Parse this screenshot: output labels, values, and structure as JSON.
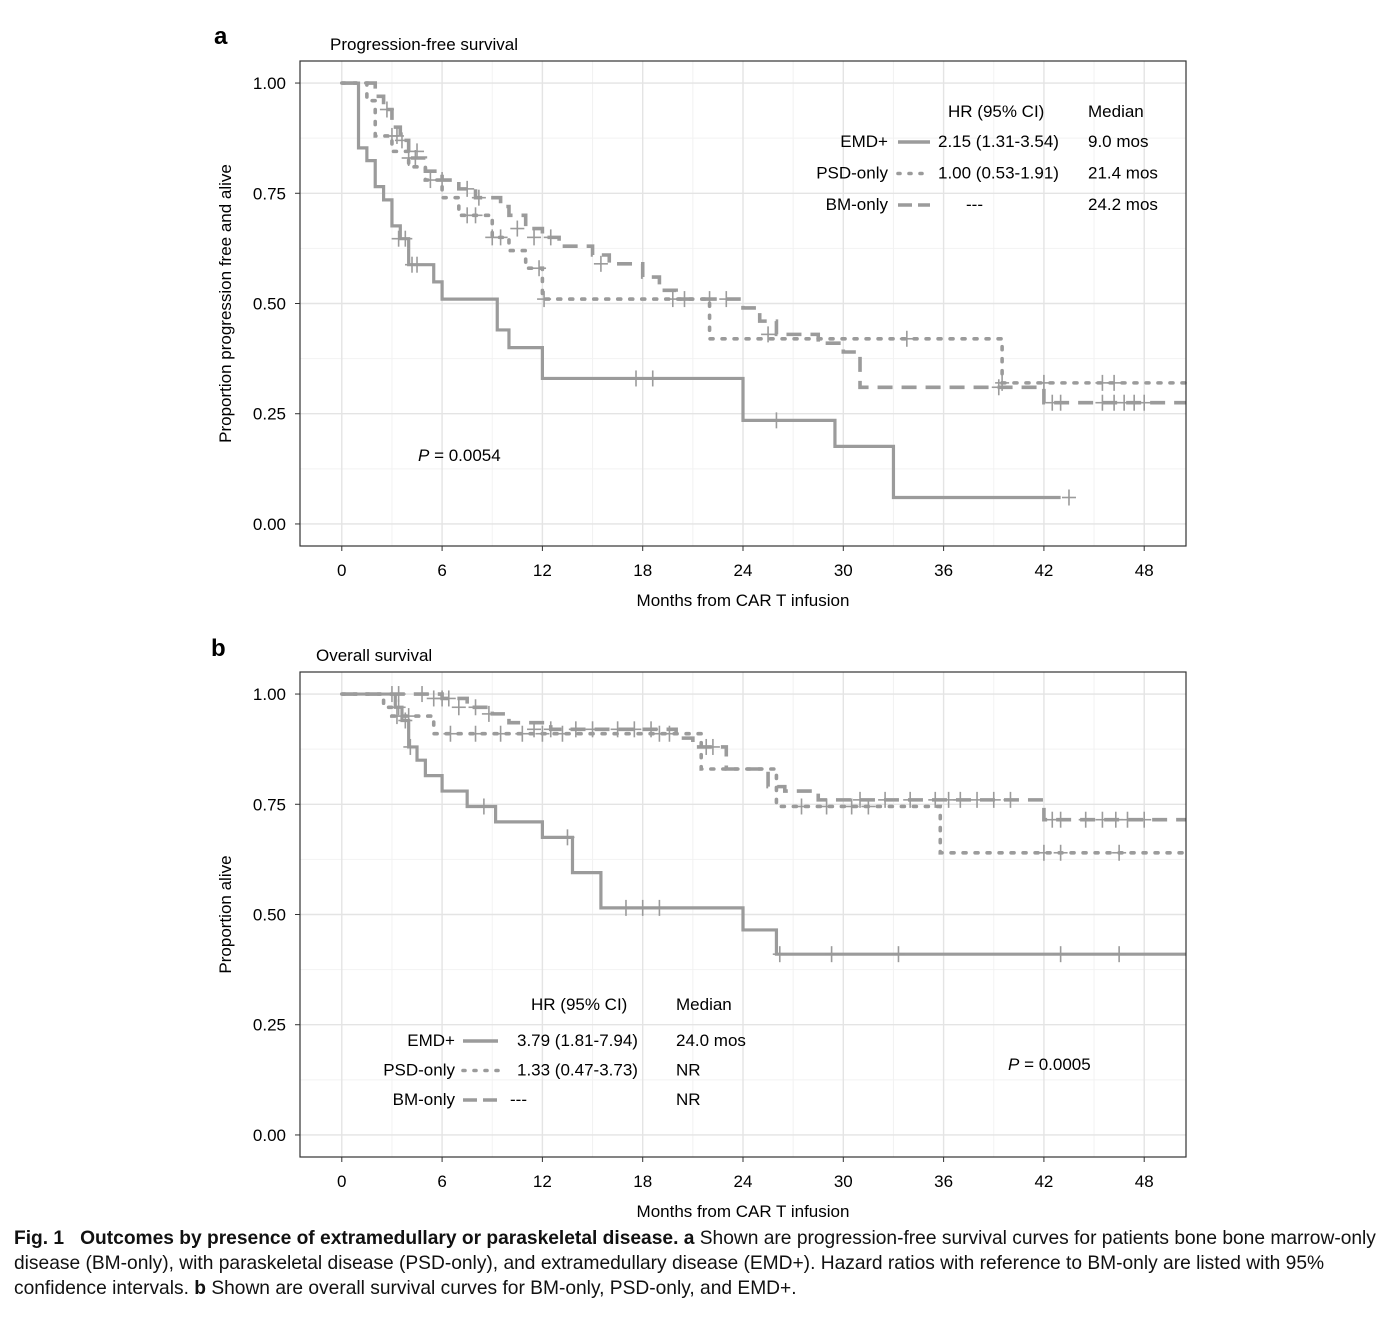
{
  "chart_data": [
    {
      "panel_label": "a",
      "type": "line",
      "subtype": "kaplan-meier",
      "title": "Progression-free survival",
      "xlabel": "Months from CAR T infusion",
      "ylabel": "Proportion progression free and alive",
      "xlim": [
        -2.5,
        50.5
      ],
      "ylim": [
        -0.05,
        1.05
      ],
      "xticks": [
        "0",
        "6",
        "12",
        "18",
        "24",
        "30",
        "36",
        "42",
        "48"
      ],
      "yticks": [
        "0.00",
        "0.25",
        "0.50",
        "0.75",
        "1.00"
      ],
      "grid": true,
      "p_label": "P",
      "p_value": " = 0.0054",
      "legend": {
        "placement": "top-right",
        "hr_header": "HR (95% CI)",
        "median_header": "Median",
        "rows": [
          {
            "name": "EMD+",
            "hr": "2.15 (1.31-3.54)",
            "median": "9.0 mos",
            "style": "solid"
          },
          {
            "name": "PSD-only",
            "hr": "1.00 (0.53-1.91)",
            "median": "21.4 mos",
            "style": "dotted"
          },
          {
            "name": "BM-only",
            "hr": "---",
            "median": "24.2 mos",
            "style": "dashed"
          }
        ]
      },
      "series": [
        {
          "name": "EMD+",
          "style": "solid",
          "x": [
            0,
            0.8,
            1.0,
            1.5,
            2.0,
            2.5,
            3.0,
            3.5,
            4.0,
            5.5,
            6.0,
            9.0,
            9.3,
            10.0,
            12.0,
            24.0,
            29.5,
            33.0,
            43.0
          ],
          "y": [
            1.0,
            1.0,
            0.853,
            0.824,
            0.765,
            0.735,
            0.676,
            0.647,
            0.588,
            0.549,
            0.51,
            0.51,
            0.44,
            0.4,
            0.33,
            0.235,
            0.176,
            0.06,
            0.06
          ],
          "censor_x": [
            3.4,
            3.8,
            4.2,
            4.5,
            17.6,
            18.6,
            26.0,
            43.5
          ],
          "censor_y": [
            0.647,
            0.647,
            0.588,
            0.588,
            0.33,
            0.33,
            0.235,
            0.06
          ]
        },
        {
          "name": "PSD-only",
          "style": "dotted",
          "x": [
            0,
            1.0,
            1.5,
            2.0,
            3.0,
            4.0,
            5.0,
            6.0,
            7.0,
            9.0,
            10.0,
            11.0,
            12.0,
            21.0,
            22.0,
            38.8,
            39.5,
            50.5
          ],
          "y": [
            1.0,
            1.0,
            0.96,
            0.88,
            0.845,
            0.81,
            0.78,
            0.74,
            0.7,
            0.65,
            0.62,
            0.58,
            0.51,
            0.51,
            0.42,
            0.42,
            0.32,
            0.32
          ],
          "censor_x": [
            3.0,
            3.3,
            4.5,
            7.5,
            8.0,
            9.0,
            9.5,
            11.8,
            12.1,
            33.8,
            39.5,
            42.0,
            45.5,
            46.2
          ],
          "censor_y": [
            0.88,
            0.88,
            0.845,
            0.7,
            0.7,
            0.65,
            0.65,
            0.58,
            0.51,
            0.42,
            0.32,
            0.32,
            0.32,
            0.32
          ]
        },
        {
          "name": "BM-only",
          "style": "dashed",
          "x": [
            0,
            1.5,
            2.0,
            2.5,
            3.0,
            3.5,
            4.0,
            5.0,
            6.0,
            7.0,
            8.0,
            9.5,
            10.0,
            11.0,
            12.0,
            13.0,
            15.0,
            16.0,
            18.0,
            19.0,
            20.0,
            21.0,
            24.0,
            25.0,
            26.0,
            28.5,
            30.0,
            31.0,
            39.0,
            42.0,
            50.5
          ],
          "y": [
            1.0,
            1.0,
            0.97,
            0.94,
            0.9,
            0.87,
            0.83,
            0.8,
            0.78,
            0.76,
            0.74,
            0.72,
            0.7,
            0.67,
            0.65,
            0.63,
            0.61,
            0.59,
            0.56,
            0.53,
            0.51,
            0.51,
            0.49,
            0.46,
            0.43,
            0.41,
            0.39,
            0.31,
            0.31,
            0.275,
            0.275
          ],
          "censor_x": [
            2.7,
            3.6,
            4.0,
            4.4,
            5.3,
            6.0,
            7.5,
            8.2,
            10.5,
            11.5,
            12.5,
            15.5,
            19.8,
            20.5,
            22.0,
            23.0,
            25.5,
            39.3,
            42.5,
            43.0,
            45.5,
            46.2,
            46.8,
            47.4,
            48.0
          ],
          "censor_y": [
            0.94,
            0.87,
            0.83,
            0.83,
            0.78,
            0.78,
            0.76,
            0.74,
            0.67,
            0.65,
            0.65,
            0.59,
            0.51,
            0.51,
            0.51,
            0.51,
            0.43,
            0.31,
            0.275,
            0.275,
            0.275,
            0.275,
            0.275,
            0.275,
            0.275
          ]
        }
      ]
    },
    {
      "panel_label": "b",
      "type": "line",
      "subtype": "kaplan-meier",
      "title": "Overall survival",
      "xlabel": "Months from CAR T infusion",
      "ylabel": "Proportion alive",
      "xlim": [
        -2.5,
        50.5
      ],
      "ylim": [
        -0.05,
        1.05
      ],
      "xticks": [
        "0",
        "6",
        "12",
        "18",
        "24",
        "30",
        "36",
        "42",
        "48"
      ],
      "yticks": [
        "0.00",
        "0.25",
        "0.50",
        "0.75",
        "1.00"
      ],
      "grid": true,
      "p_label": "P",
      "p_value": " = 0.0005",
      "legend": {
        "placement": "bottom-left",
        "hr_header": "HR (95% CI)",
        "median_header": "Median",
        "rows": [
          {
            "name": "EMD+",
            "hr": "3.79 (1.81-7.94)",
            "median": "24.0 mos",
            "style": "solid"
          },
          {
            "name": "PSD-only",
            "hr": "1.33 (0.47-3.73)",
            "median": "NR",
            "style": "dotted"
          },
          {
            "name": "BM-only",
            "hr": "---",
            "median": "NR",
            "style": "dashed"
          }
        ]
      },
      "series": [
        {
          "name": "EMD+",
          "style": "solid",
          "x": [
            0,
            3.0,
            3.2,
            3.6,
            4.0,
            4.5,
            5.0,
            6.0,
            7.5,
            9.2,
            12.0,
            13.8,
            15.5,
            24.0,
            26.0,
            50.5
          ],
          "y": [
            1.0,
            1.0,
            0.97,
            0.94,
            0.88,
            0.85,
            0.815,
            0.78,
            0.745,
            0.71,
            0.675,
            0.595,
            0.515,
            0.465,
            0.41,
            0.41
          ],
          "censor_x": [
            3.4,
            3.8,
            4.1,
            8.5,
            13.5,
            17.0,
            18.0,
            19.0,
            26.2,
            29.3,
            33.3,
            43.0,
            46.5
          ],
          "censor_y": [
            0.97,
            0.94,
            0.88,
            0.745,
            0.675,
            0.515,
            0.515,
            0.515,
            0.41,
            0.41,
            0.41,
            0.41,
            0.41
          ]
        },
        {
          "name": "PSD-only",
          "style": "dotted",
          "x": [
            0,
            1.5,
            2.5,
            3.0,
            5.0,
            5.5,
            21.0,
            21.5,
            25.5,
            26.0,
            35.5,
            35.8,
            50.5
          ],
          "y": [
            1.0,
            1.0,
            0.97,
            0.95,
            0.95,
            0.91,
            0.91,
            0.83,
            0.83,
            0.745,
            0.745,
            0.64,
            0.64
          ],
          "censor_x": [
            3.3,
            4.0,
            6.5,
            8.0,
            9.5,
            10.8,
            12.0,
            13.2,
            19.0,
            19.6,
            27.5,
            29.0,
            30.5,
            31.5,
            42.0,
            43.0,
            46.5
          ],
          "censor_y": [
            0.95,
            0.95,
            0.91,
            0.91,
            0.91,
            0.91,
            0.91,
            0.91,
            0.91,
            0.91,
            0.745,
            0.745,
            0.745,
            0.745,
            0.64,
            0.64,
            0.64
          ]
        },
        {
          "name": "BM-only",
          "style": "dashed",
          "x": [
            0,
            4.5,
            6.0,
            7.5,
            9.0,
            10.0,
            12.5,
            20.0,
            21.0,
            23.0,
            25.5,
            26.5,
            28.5,
            42.0,
            50.5
          ],
          "y": [
            1.0,
            1.0,
            0.99,
            0.97,
            0.955,
            0.935,
            0.92,
            0.9,
            0.88,
            0.83,
            0.79,
            0.78,
            0.76,
            0.715,
            0.715
          ],
          "censor_x": [
            3.0,
            3.4,
            4.8,
            5.5,
            6.0,
            6.4,
            7.0,
            8.0,
            8.8,
            11.5,
            12.5,
            14.0,
            15.0,
            16.5,
            17.5,
            18.5,
            21.8,
            22.2,
            31.0,
            32.5,
            34.0,
            35.5,
            36.3,
            37.0,
            38.0,
            39.0,
            40.0,
            42.5,
            43.0,
            44.5,
            45.5,
            46.3,
            47.0,
            48.0
          ],
          "censor_y": [
            1.0,
            1.0,
            1.0,
            0.99,
            0.99,
            0.99,
            0.97,
            0.97,
            0.955,
            0.92,
            0.92,
            0.92,
            0.92,
            0.92,
            0.92,
            0.92,
            0.88,
            0.88,
            0.76,
            0.76,
            0.76,
            0.76,
            0.76,
            0.76,
            0.76,
            0.76,
            0.76,
            0.715,
            0.715,
            0.715,
            0.715,
            0.715,
            0.715,
            0.715
          ]
        }
      ]
    }
  ],
  "caption": {
    "label": "Fig. 1",
    "bold_title": "Outcomes by presence of extramedullary or paraskeletal disease.",
    "a_label": "a",
    "a_text": " Shown are progression-free survival curves for patients bone bone marrow-only disease (BM-only), with paraskeletal disease (PSD-only), and extramedullary disease (EMD+). Hazard ratios with reference to BM-only are listed with 95% confidence intervals. ",
    "b_label": "b",
    "b_text": " Shown are overall survival curves for BM-only, PSD-only, and EMD+."
  }
}
